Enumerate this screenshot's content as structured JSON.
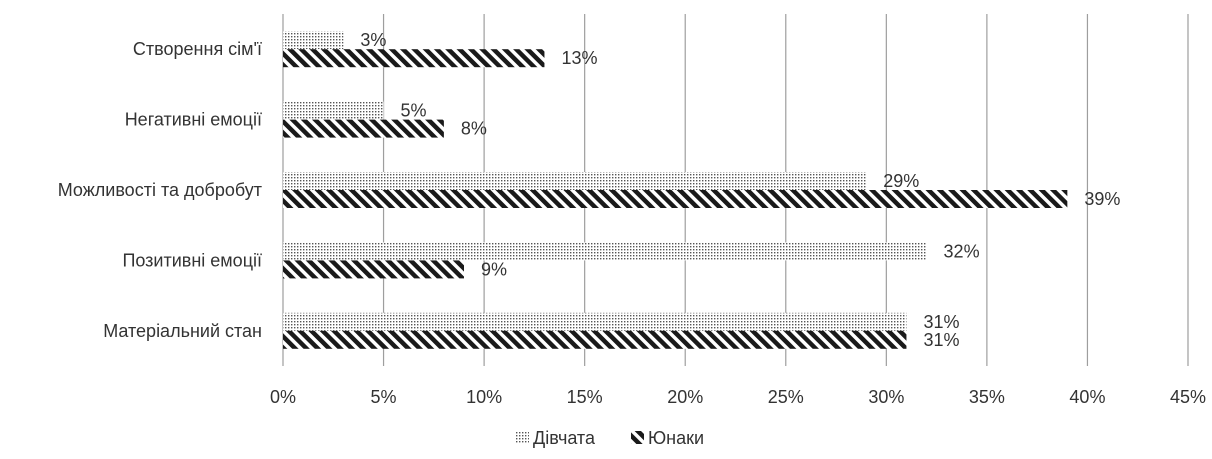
{
  "chart_data": {
    "type": "bar",
    "orientation": "horizontal",
    "categories": [
      "Створення сім'ї",
      "Негативні емоції",
      "Можливості та добробут",
      "Позитивні емоції",
      "Матеріальний стан"
    ],
    "series": [
      {
        "name": "Дівчата",
        "values": [
          3,
          5,
          29,
          32,
          31
        ],
        "labels": [
          "3%",
          "5%",
          "29%",
          "32%",
          "31%"
        ],
        "pattern": "dotted"
      },
      {
        "name": "Юнаки",
        "values": [
          13,
          8,
          39,
          9,
          31
        ],
        "labels": [
          "13%",
          "8%",
          "39%",
          "9%",
          "31%"
        ],
        "pattern": "diagonal-stripes"
      }
    ],
    "xlim": [
      0,
      45
    ],
    "xticks": [
      0,
      5,
      10,
      15,
      20,
      25,
      30,
      35,
      40,
      45
    ],
    "xtick_labels": [
      "0%",
      "5%",
      "10%",
      "15%",
      "20%",
      "25%",
      "30%",
      "35%",
      "40%",
      "45%"
    ],
    "grid": "vertical",
    "legend_position": "bottom",
    "title": "",
    "xlabel": "",
    "ylabel": "",
    "colors": {
      "bar": "#1a1a1a",
      "text": "#333333",
      "grid": "#9e9e9e"
    }
  }
}
